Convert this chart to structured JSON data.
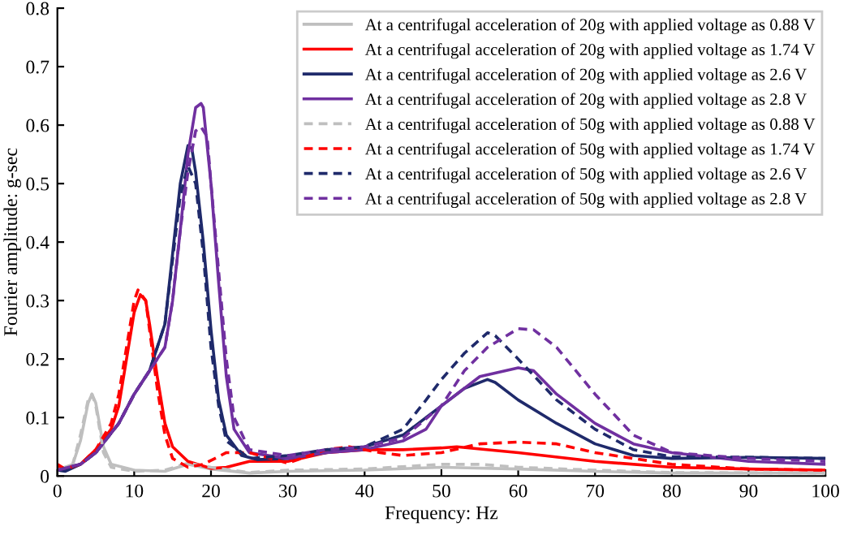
{
  "chart_data": {
    "type": "line",
    "xlabel": "Frequency: Hz",
    "ylabel": "Fourier amplitude: g-sec",
    "xlim": [
      0,
      100
    ],
    "xticks": [
      0,
      10,
      20,
      30,
      40,
      50,
      60,
      70,
      80,
      90,
      100
    ],
    "ylim": [
      0,
      0.8
    ],
    "yticks": [
      0,
      0.1,
      0.2,
      0.3,
      0.4,
      0.5,
      0.6,
      0.7,
      0.8
    ],
    "grid": false,
    "legend": "top right",
    "marker": "none",
    "series": [
      {
        "name": "At a centrifugal acceleration of 20g with applied voltage as 0.88 V",
        "color": "#bfbfbf",
        "line_style": "solid",
        "x": [
          0,
          2,
          3,
          4,
          4.5,
          5,
          6,
          7,
          10,
          14,
          17,
          20,
          25,
          30,
          40,
          50,
          60,
          70,
          80,
          90,
          100
        ],
        "values": [
          0.01,
          0.02,
          0.06,
          0.125,
          0.14,
          0.125,
          0.05,
          0.02,
          0.01,
          0.008,
          0.02,
          0.012,
          0.005,
          0.008,
          0.01,
          0.015,
          0.012,
          0.008,
          0.005,
          0.005,
          0.005
        ]
      },
      {
        "name": "At a centrifugal acceleration of 20g with applied voltage as 1.74 V",
        "color": "#ff0000",
        "line_style": "solid",
        "x": [
          0,
          1,
          3,
          5,
          7,
          8,
          9,
          10,
          10.8,
          11.5,
          12,
          13,
          14,
          15,
          17,
          20,
          22,
          25,
          30,
          35,
          40,
          45,
          50,
          52,
          60,
          70,
          80,
          90,
          100
        ],
        "values": [
          0.015,
          0.01,
          0.02,
          0.045,
          0.08,
          0.12,
          0.2,
          0.28,
          0.31,
          0.3,
          0.26,
          0.17,
          0.09,
          0.05,
          0.025,
          0.013,
          0.015,
          0.025,
          0.025,
          0.04,
          0.045,
          0.045,
          0.048,
          0.05,
          0.04,
          0.025,
          0.015,
          0.012,
          0.01
        ]
      },
      {
        "name": "At a centrifugal acceleration of 20g with applied voltage as 2.6 V",
        "color": "#1f2a6b",
        "line_style": "solid",
        "x": [
          0,
          1,
          3,
          5,
          8,
          10,
          12,
          14,
          15,
          16,
          17,
          17.5,
          18,
          19,
          20,
          21,
          22,
          24,
          26,
          30,
          35,
          40,
          45,
          50,
          53,
          56,
          57,
          60,
          65,
          70,
          75,
          80,
          90,
          100
        ],
        "values": [
          0.01,
          0.008,
          0.02,
          0.04,
          0.09,
          0.14,
          0.18,
          0.26,
          0.38,
          0.5,
          0.565,
          0.56,
          0.52,
          0.4,
          0.25,
          0.13,
          0.07,
          0.035,
          0.028,
          0.03,
          0.04,
          0.05,
          0.07,
          0.12,
          0.15,
          0.165,
          0.16,
          0.13,
          0.09,
          0.055,
          0.035,
          0.03,
          0.032,
          0.03
        ]
      },
      {
        "name": "At a centrifugal acceleration of 20g with applied voltage as 2.8 V",
        "color": "#7030a0",
        "line_style": "solid",
        "x": [
          0,
          3,
          5,
          8,
          10,
          12,
          14,
          15,
          16,
          17,
          18,
          18.7,
          19,
          20,
          21,
          22,
          23,
          25,
          30,
          35,
          40,
          45,
          48,
          50,
          55,
          60,
          62,
          65,
          70,
          75,
          80,
          90,
          100
        ],
        "values": [
          0.01,
          0.02,
          0.04,
          0.09,
          0.14,
          0.18,
          0.22,
          0.3,
          0.42,
          0.55,
          0.63,
          0.637,
          0.63,
          0.5,
          0.33,
          0.17,
          0.08,
          0.04,
          0.03,
          0.04,
          0.045,
          0.06,
          0.08,
          0.12,
          0.17,
          0.185,
          0.18,
          0.14,
          0.09,
          0.055,
          0.04,
          0.025,
          0.02
        ]
      },
      {
        "name": "At a centrifugal acceleration of 50g with applied voltage as 0.88 V",
        "color": "#bfbfbf",
        "line_style": "dashed",
        "x": [
          0,
          2,
          3,
          4,
          4.5,
          5,
          6,
          7,
          10,
          14,
          17,
          20,
          25,
          30,
          40,
          50,
          55,
          60,
          70,
          80,
          100
        ],
        "values": [
          0.01,
          0.02,
          0.07,
          0.13,
          0.14,
          0.12,
          0.04,
          0.015,
          0.008,
          0.01,
          0.022,
          0.015,
          0.006,
          0.01,
          0.012,
          0.02,
          0.02,
          0.015,
          0.01,
          0.006,
          0.005
        ]
      },
      {
        "name": "At a centrifugal acceleration of 50g with applied voltage as 1.74 V",
        "color": "#ff0000",
        "line_style": "dashed",
        "x": [
          0,
          1,
          3,
          5,
          7,
          8,
          9,
          10,
          10.5,
          11.5,
          12,
          13,
          14,
          15,
          17,
          19,
          22,
          25,
          30,
          35,
          38,
          42,
          45,
          50,
          55,
          60,
          65,
          70,
          80,
          90,
          100
        ],
        "values": [
          0.02,
          0.012,
          0.02,
          0.045,
          0.09,
          0.14,
          0.22,
          0.3,
          0.318,
          0.3,
          0.25,
          0.15,
          0.07,
          0.03,
          0.015,
          0.02,
          0.04,
          0.04,
          0.022,
          0.045,
          0.05,
          0.04,
          0.035,
          0.04,
          0.055,
          0.058,
          0.055,
          0.04,
          0.02,
          0.012,
          0.01
        ]
      },
      {
        "name": "At a centrifugal acceleration of 50g with applied voltage as 2.6 V",
        "color": "#1f2a6b",
        "line_style": "dashed",
        "x": [
          0,
          3,
          5,
          8,
          10,
          12,
          14,
          15,
          16,
          17,
          18,
          19,
          20,
          21,
          22,
          25,
          30,
          35,
          40,
          45,
          48,
          50,
          53,
          56,
          57,
          60,
          65,
          70,
          75,
          80,
          90,
          100
        ],
        "values": [
          0.01,
          0.02,
          0.04,
          0.09,
          0.14,
          0.18,
          0.26,
          0.37,
          0.48,
          0.53,
          0.5,
          0.38,
          0.22,
          0.12,
          0.06,
          0.03,
          0.035,
          0.045,
          0.05,
          0.08,
          0.13,
          0.165,
          0.21,
          0.245,
          0.24,
          0.2,
          0.13,
          0.08,
          0.045,
          0.033,
          0.032,
          0.03
        ]
      },
      {
        "name": "At a centrifugal acceleration of 50g with applied voltage as 2.8 V",
        "color": "#7030a0",
        "line_style": "dashed",
        "x": [
          0,
          3,
          5,
          8,
          10,
          12,
          14,
          15,
          16,
          17,
          18,
          18.7,
          19.5,
          20,
          21,
          22,
          23,
          25,
          30,
          35,
          40,
          45,
          50,
          53,
          56,
          60,
          62,
          65,
          70,
          75,
          80,
          90,
          100
        ],
        "values": [
          0.01,
          0.02,
          0.04,
          0.09,
          0.14,
          0.18,
          0.22,
          0.3,
          0.42,
          0.52,
          0.59,
          0.597,
          0.58,
          0.5,
          0.35,
          0.2,
          0.1,
          0.045,
          0.035,
          0.045,
          0.05,
          0.065,
          0.12,
          0.18,
          0.22,
          0.252,
          0.25,
          0.22,
          0.14,
          0.07,
          0.04,
          0.03,
          0.025
        ]
      }
    ]
  }
}
